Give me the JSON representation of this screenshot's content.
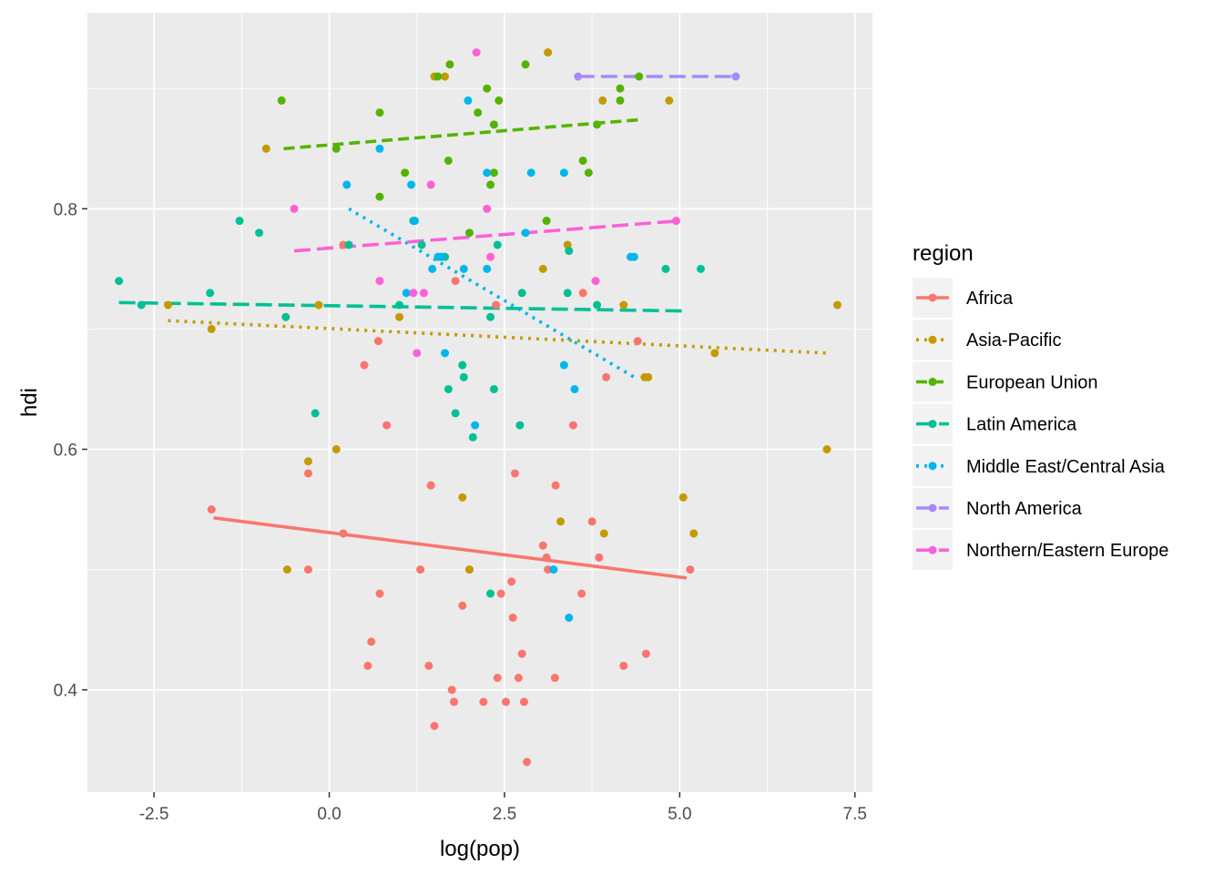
{
  "chart_data": {
    "type": "scatter",
    "title": "",
    "xlabel": "log(pop)",
    "ylabel": "hdi",
    "xlim": [
      -3.45,
      7.75
    ],
    "ylim": [
      0.315,
      0.963
    ],
    "x_ticks": [
      -2.5,
      0.0,
      2.5,
      5.0,
      7.5
    ],
    "x_tick_labels": [
      "-2.5",
      "0.0",
      "2.5",
      "5.0",
      "7.5"
    ],
    "y_ticks": [
      0.4,
      0.6,
      0.8
    ],
    "y_tick_labels": [
      "0.4",
      "0.6",
      "0.8"
    ],
    "grid": true,
    "legend": {
      "title": "region",
      "placement": "right"
    },
    "series": [
      {
        "name": "Africa",
        "color": "#F8766D",
        "dash": "solid",
        "trend": [
          [
            -1.65,
            0.543
          ],
          [
            5.1,
            0.493
          ]
        ],
        "points": [
          [
            -1.68,
            0.55
          ],
          [
            -0.3,
            0.5
          ],
          [
            -0.3,
            0.58
          ],
          [
            0.2,
            0.53
          ],
          [
            0.2,
            0.77
          ],
          [
            0.5,
            0.67
          ],
          [
            0.55,
            0.42
          ],
          [
            0.6,
            0.44
          ],
          [
            0.7,
            0.69
          ],
          [
            0.72,
            0.48
          ],
          [
            0.82,
            0.62
          ],
          [
            1.3,
            0.5
          ],
          [
            1.42,
            0.42
          ],
          [
            1.45,
            0.57
          ],
          [
            1.5,
            0.37
          ],
          [
            1.8,
            0.74
          ],
          [
            1.75,
            0.4
          ],
          [
            1.78,
            0.39
          ],
          [
            1.9,
            0.47
          ],
          [
            2.0,
            0.5
          ],
          [
            2.2,
            0.39
          ],
          [
            2.38,
            0.72
          ],
          [
            2.4,
            0.41
          ],
          [
            2.45,
            0.48
          ],
          [
            2.52,
            0.39
          ],
          [
            2.6,
            0.49
          ],
          [
            2.62,
            0.46
          ],
          [
            2.65,
            0.58
          ],
          [
            2.7,
            0.41
          ],
          [
            2.75,
            0.43
          ],
          [
            2.78,
            0.39
          ],
          [
            2.82,
            0.34
          ],
          [
            3.05,
            0.52
          ],
          [
            3.1,
            0.51
          ],
          [
            3.12,
            0.5
          ],
          [
            3.23,
            0.57
          ],
          [
            3.22,
            0.41
          ],
          [
            3.48,
            0.62
          ],
          [
            3.6,
            0.48
          ],
          [
            3.62,
            0.73
          ],
          [
            3.75,
            0.54
          ],
          [
            3.85,
            0.51
          ],
          [
            3.95,
            0.66
          ],
          [
            4.2,
            0.42
          ],
          [
            4.4,
            0.69
          ],
          [
            4.52,
            0.43
          ],
          [
            5.15,
            0.5
          ]
        ]
      },
      {
        "name": "Asia-Pacific",
        "color": "#C49A00",
        "dash": "dotted",
        "trend": [
          [
            -2.3,
            0.707
          ],
          [
            7.1,
            0.68
          ]
        ],
        "points": [
          [
            -2.3,
            0.72
          ],
          [
            -1.68,
            0.7
          ],
          [
            -0.9,
            0.85
          ],
          [
            -0.6,
            0.5
          ],
          [
            -0.3,
            0.59
          ],
          [
            0.1,
            0.6
          ],
          [
            -0.15,
            0.72
          ],
          [
            1.0,
            0.71
          ],
          [
            1.5,
            0.91
          ],
          [
            1.65,
            0.91
          ],
          [
            1.9,
            0.56
          ],
          [
            2.0,
            0.5
          ],
          [
            3.05,
            0.75
          ],
          [
            3.12,
            0.93
          ],
          [
            3.3,
            0.54
          ],
          [
            3.4,
            0.77
          ],
          [
            3.92,
            0.53
          ],
          [
            3.9,
            0.89
          ],
          [
            4.2,
            0.72
          ],
          [
            4.5,
            0.66
          ],
          [
            4.55,
            0.66
          ],
          [
            4.85,
            0.89
          ],
          [
            5.05,
            0.56
          ],
          [
            5.2,
            0.53
          ],
          [
            5.5,
            0.68
          ],
          [
            7.1,
            0.6
          ],
          [
            7.25,
            0.72
          ]
        ]
      },
      {
        "name": "European Union",
        "color": "#53B400",
        "dash": "dashed",
        "trend": [
          [
            -0.65,
            0.85
          ],
          [
            4.42,
            0.874
          ]
        ],
        "points": [
          [
            -0.68,
            0.89
          ],
          [
            0.1,
            0.85
          ],
          [
            0.72,
            0.81
          ],
          [
            0.72,
            0.88
          ],
          [
            1.08,
            0.83
          ],
          [
            1.55,
            0.91
          ],
          [
            1.7,
            0.84
          ],
          [
            1.72,
            0.92
          ],
          [
            2.0,
            0.78
          ],
          [
            2.12,
            0.88
          ],
          [
            2.25,
            0.9
          ],
          [
            2.3,
            0.82
          ],
          [
            2.35,
            0.83
          ],
          [
            2.35,
            0.87
          ],
          [
            2.42,
            0.89
          ],
          [
            2.8,
            0.92
          ],
          [
            3.1,
            0.79
          ],
          [
            3.62,
            0.84
          ],
          [
            3.7,
            0.83
          ],
          [
            3.82,
            0.87
          ],
          [
            4.15,
            0.9
          ],
          [
            4.15,
            0.89
          ],
          [
            4.42,
            0.91
          ]
        ]
      },
      {
        "name": "Latin America",
        "color": "#00C094",
        "dash": "longdash",
        "trend": [
          [
            -3.0,
            0.722
          ],
          [
            5.1,
            0.715
          ]
        ],
        "points": [
          [
            -3.0,
            0.74
          ],
          [
            -2.68,
            0.72
          ],
          [
            -1.7,
            0.73
          ],
          [
            -1.28,
            0.79
          ],
          [
            -1.0,
            0.78
          ],
          [
            -0.62,
            0.71
          ],
          [
            -0.2,
            0.63
          ],
          [
            0.28,
            0.77
          ],
          [
            1.0,
            0.72
          ],
          [
            1.2,
            0.79
          ],
          [
            1.32,
            0.77
          ],
          [
            1.65,
            0.76
          ],
          [
            1.7,
            0.65
          ],
          [
            1.8,
            0.63
          ],
          [
            1.9,
            0.67
          ],
          [
            1.92,
            0.66
          ],
          [
            2.05,
            0.61
          ],
          [
            2.3,
            0.71
          ],
          [
            2.3,
            0.48
          ],
          [
            2.35,
            0.65
          ],
          [
            2.4,
            0.77
          ],
          [
            2.72,
            0.62
          ],
          [
            2.75,
            0.73
          ],
          [
            3.4,
            0.73
          ],
          [
            3.42,
            0.765
          ],
          [
            3.82,
            0.72
          ],
          [
            4.8,
            0.75
          ],
          [
            5.3,
            0.75
          ]
        ]
      },
      {
        "name": "Middle East/Central Asia",
        "color": "#00B6EB",
        "dash": "dotted",
        "trend": [
          [
            0.28,
            0.8
          ],
          [
            4.35,
            0.66
          ]
        ],
        "points": [
          [
            0.25,
            0.82
          ],
          [
            0.72,
            0.85
          ],
          [
            1.1,
            0.73
          ],
          [
            1.17,
            0.82
          ],
          [
            1.22,
            0.79
          ],
          [
            1.47,
            0.75
          ],
          [
            1.55,
            0.76
          ],
          [
            1.6,
            0.76
          ],
          [
            1.65,
            0.68
          ],
          [
            1.92,
            0.75
          ],
          [
            1.98,
            0.89
          ],
          [
            2.08,
            0.62
          ],
          [
            2.25,
            0.83
          ],
          [
            2.25,
            0.75
          ],
          [
            2.8,
            0.78
          ],
          [
            2.88,
            0.83
          ],
          [
            3.2,
            0.5
          ],
          [
            3.35,
            0.83
          ],
          [
            3.35,
            0.67
          ],
          [
            3.42,
            0.46
          ],
          [
            3.5,
            0.65
          ],
          [
            4.3,
            0.76
          ],
          [
            4.35,
            0.76
          ]
        ]
      },
      {
        "name": "North America",
        "color": "#A58AFF",
        "dash": "longdash",
        "trend": [
          [
            3.55,
            0.91
          ],
          [
            5.8,
            0.91
          ]
        ],
        "points": [
          [
            3.55,
            0.91
          ],
          [
            5.8,
            0.91
          ]
        ]
      },
      {
        "name": "Northern/Eastern Europe",
        "color": "#FB61D7",
        "dash": "longdash",
        "trend": [
          [
            -0.5,
            0.765
          ],
          [
            5.0,
            0.79
          ]
        ],
        "points": [
          [
            -0.5,
            0.8
          ],
          [
            0.72,
            0.74
          ],
          [
            1.2,
            0.73
          ],
          [
            1.25,
            0.68
          ],
          [
            1.35,
            0.73
          ],
          [
            1.45,
            0.82
          ],
          [
            2.1,
            0.93
          ],
          [
            2.25,
            0.8
          ],
          [
            2.3,
            0.76
          ],
          [
            3.8,
            0.74
          ],
          [
            4.95,
            0.79
          ]
        ]
      }
    ]
  }
}
